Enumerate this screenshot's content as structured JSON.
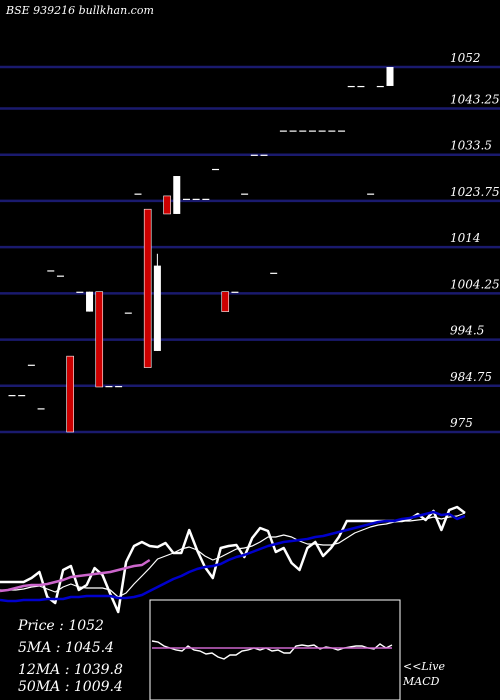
{
  "header": {
    "title": "BSE 939216  bullkhan.com"
  },
  "colors": {
    "background": "#000000",
    "grid": "#1a1a6e",
    "up_candle": "#ffffff",
    "down_candle": "#cc0000",
    "price_line": "#ffffff",
    "ma_fast": "#ffffff",
    "ma_mid": "#0000cc",
    "ma_slow": "#cc66cc",
    "macd_line": "#ffffff",
    "macd_signal": "#cc66cc"
  },
  "summary": {
    "price": "Price   : 1052",
    "ma5": "5MA : 1045.4",
    "ma12": "12MA : 1039.8",
    "ma50": "50MA : 1009.4"
  },
  "macd": {
    "live_label": "<<Live",
    "name": "MACD"
  },
  "chart_data": [
    {
      "type": "candlestick",
      "title": "BSE 939216",
      "y_ticks": [
        "1052",
        "1043.25",
        "1033.5",
        "1023.75",
        "1014",
        "1004.25",
        "994.5",
        "984.75",
        "975"
      ],
      "ylim": [
        975,
        1052
      ],
      "grid": true,
      "candles": [
        {
          "open": 982.8,
          "high": 982.8,
          "low": 982.8,
          "close": 982.8
        },
        {
          "open": 982.8,
          "high": 982.8,
          "low": 982.8,
          "close": 982.8
        },
        {
          "open": 989.2,
          "high": 989.2,
          "low": 989.2,
          "close": 989.2
        },
        {
          "open": 980.0,
          "high": 980.0,
          "low": 980.0,
          "close": 980.0
        },
        {
          "open": 1009.1,
          "high": 1009.1,
          "low": 1009.1,
          "close": 1009.1
        },
        {
          "open": 1008.0,
          "high": 1008.0,
          "low": 1008.0,
          "close": 1008.0
        },
        {
          "open": 991.0,
          "high": 991.0,
          "low": 975.0,
          "close": 975.0
        },
        {
          "open": 1004.6,
          "high": 1004.6,
          "low": 1004.6,
          "close": 1004.6
        },
        {
          "open": 1000.4,
          "high": 1004.6,
          "low": 1000.4,
          "close": 1004.6
        },
        {
          "open": 1004.6,
          "high": 1004.6,
          "low": 984.5,
          "close": 984.5
        },
        {
          "open": 984.7,
          "high": 984.7,
          "low": 984.7,
          "close": 984.7
        },
        {
          "open": 984.7,
          "high": 984.7,
          "low": 984.7,
          "close": 984.7
        },
        {
          "open": 1000.2,
          "high": 1000.2,
          "low": 1000.2,
          "close": 1000.2
        },
        {
          "open": 1025.3,
          "high": 1025.3,
          "low": 1025.3,
          "close": 1025.3
        },
        {
          "open": 1022.0,
          "high": 1022.0,
          "low": 988.6,
          "close": 988.6
        },
        {
          "open": 992.1,
          "high": 1012.6,
          "low": 992.1,
          "close": 1010.1
        },
        {
          "open": 1024.8,
          "high": 1024.8,
          "low": 1021.0,
          "close": 1021.0
        },
        {
          "open": 1021.0,
          "high": 1029.0,
          "low": 1021.0,
          "close": 1029.0
        },
        {
          "open": 1024.2,
          "high": 1024.2,
          "low": 1024.2,
          "close": 1024.2
        },
        {
          "open": 1024.2,
          "high": 1024.2,
          "low": 1024.2,
          "close": 1024.2
        },
        {
          "open": 1024.2,
          "high": 1024.2,
          "low": 1024.2,
          "close": 1024.2
        },
        {
          "open": 1030.5,
          "high": 1030.5,
          "low": 1030.5,
          "close": 1030.5
        },
        {
          "open": 1004.6,
          "high": 1004.6,
          "low": 1000.4,
          "close": 1000.4
        },
        {
          "open": 1004.6,
          "high": 1004.6,
          "low": 1004.6,
          "close": 1004.6
        },
        {
          "open": 1025.3,
          "high": 1025.3,
          "low": 1025.3,
          "close": 1025.3
        },
        {
          "open": 1033.5,
          "high": 1033.5,
          "low": 1033.5,
          "close": 1033.5
        },
        {
          "open": 1033.5,
          "high": 1033.5,
          "low": 1033.5,
          "close": 1033.5
        },
        {
          "open": 1008.6,
          "high": 1008.6,
          "low": 1008.6,
          "close": 1008.6
        },
        {
          "open": 1038.6,
          "high": 1038.6,
          "low": 1038.6,
          "close": 1038.6
        },
        {
          "open": 1038.6,
          "high": 1038.6,
          "low": 1038.6,
          "close": 1038.6
        },
        {
          "open": 1038.6,
          "high": 1038.6,
          "low": 1038.6,
          "close": 1038.6
        },
        {
          "open": 1038.6,
          "high": 1038.6,
          "low": 1038.6,
          "close": 1038.6
        },
        {
          "open": 1038.6,
          "high": 1038.6,
          "low": 1038.6,
          "close": 1038.6
        },
        {
          "open": 1038.6,
          "high": 1038.6,
          "low": 1038.6,
          "close": 1038.6
        },
        {
          "open": 1038.6,
          "high": 1038.6,
          "low": 1038.6,
          "close": 1038.6
        },
        {
          "open": 1048.0,
          "high": 1048.0,
          "low": 1048.0,
          "close": 1048.0
        },
        {
          "open": 1048.0,
          "high": 1048.0,
          "low": 1048.0,
          "close": 1048.0
        },
        {
          "open": 1025.3,
          "high": 1025.3,
          "low": 1025.3,
          "close": 1025.3
        },
        {
          "open": 1048.0,
          "high": 1048.0,
          "low": 1048.0,
          "close": 1048.0
        },
        {
          "open": 1048.0,
          "high": 1052.0,
          "low": 1048.0,
          "close": 1052.0
        }
      ]
    },
    {
      "type": "line",
      "series": [
        {
          "key": "price",
          "values": [
            582,
            582,
            582,
            582,
            578,
            572,
            597,
            603,
            570,
            566,
            590,
            585,
            568,
            575,
            594,
            612,
            562,
            546,
            542,
            546,
            547,
            543,
            553,
            553,
            530,
            550,
            567,
            578,
            548,
            546,
            545,
            557,
            538,
            528,
            531,
            552,
            548,
            563,
            570,
            548,
            542,
            556,
            548,
            537,
            521,
            521,
            521,
            521,
            521,
            521,
            521,
            521,
            519,
            514,
            520,
            511,
            530,
            510,
            507,
            513
          ]
        },
        {
          "key": "ma_fast",
          "values": [
            590,
            590,
            590,
            589,
            587,
            586,
            589,
            592,
            587,
            584,
            587,
            588,
            588,
            588,
            590,
            597,
            593,
            584,
            576,
            568,
            559,
            556,
            553,
            549,
            547,
            550,
            556,
            560,
            557,
            553,
            549,
            548,
            546,
            542,
            537,
            537,
            535,
            537,
            541,
            544,
            544,
            545,
            545,
            543,
            538,
            533,
            530,
            527,
            525,
            524,
            522,
            521,
            521,
            520,
            519,
            517,
            519,
            517,
            516,
            513
          ]
        },
        {
          "key": "ma_mid",
          "values": [
            600,
            601,
            601,
            600,
            600,
            600,
            599,
            599,
            599,
            597,
            597,
            596,
            596,
            596,
            596,
            598,
            598,
            597,
            595,
            591,
            587,
            583,
            579,
            576,
            572,
            569,
            567,
            566,
            564,
            560,
            557,
            555,
            552,
            549,
            546,
            544,
            542,
            541,
            540,
            539,
            537,
            536,
            534,
            532,
            530,
            528,
            526,
            524,
            522,
            521,
            521,
            519,
            518,
            516,
            514,
            512,
            515,
            514,
            519,
            516
          ]
        },
        {
          "key": "ma_slow",
          "values": [
            591,
            590,
            588,
            586,
            585,
            585,
            584,
            582,
            580,
            577,
            576,
            575,
            574,
            573,
            572,
            570,
            568,
            566,
            565,
            560
          ]
        }
      ]
    },
    {
      "type": "line",
      "title": "MACD",
      "series": [
        {
          "key": "macd",
          "values": [
            641,
            642,
            646,
            648,
            650,
            651,
            646,
            650,
            651,
            654,
            653,
            657,
            659,
            655,
            655,
            651,
            650,
            648,
            650,
            648,
            651,
            650,
            653,
            653,
            646,
            645,
            646,
            645,
            649,
            647,
            648,
            650,
            648,
            647,
            646,
            646,
            648,
            649,
            644,
            648,
            645
          ]
        },
        {
          "key": "signal",
          "values": [
            648,
            648,
            648,
            648,
            648,
            648,
            648,
            648,
            648,
            648,
            648,
            648,
            648,
            648,
            648,
            648,
            648,
            648,
            648,
            648,
            648,
            648,
            648,
            648,
            648,
            648,
            648,
            648,
            648,
            648,
            648,
            648,
            648,
            648,
            648,
            648,
            648,
            648,
            648,
            648,
            648
          ]
        }
      ]
    }
  ]
}
